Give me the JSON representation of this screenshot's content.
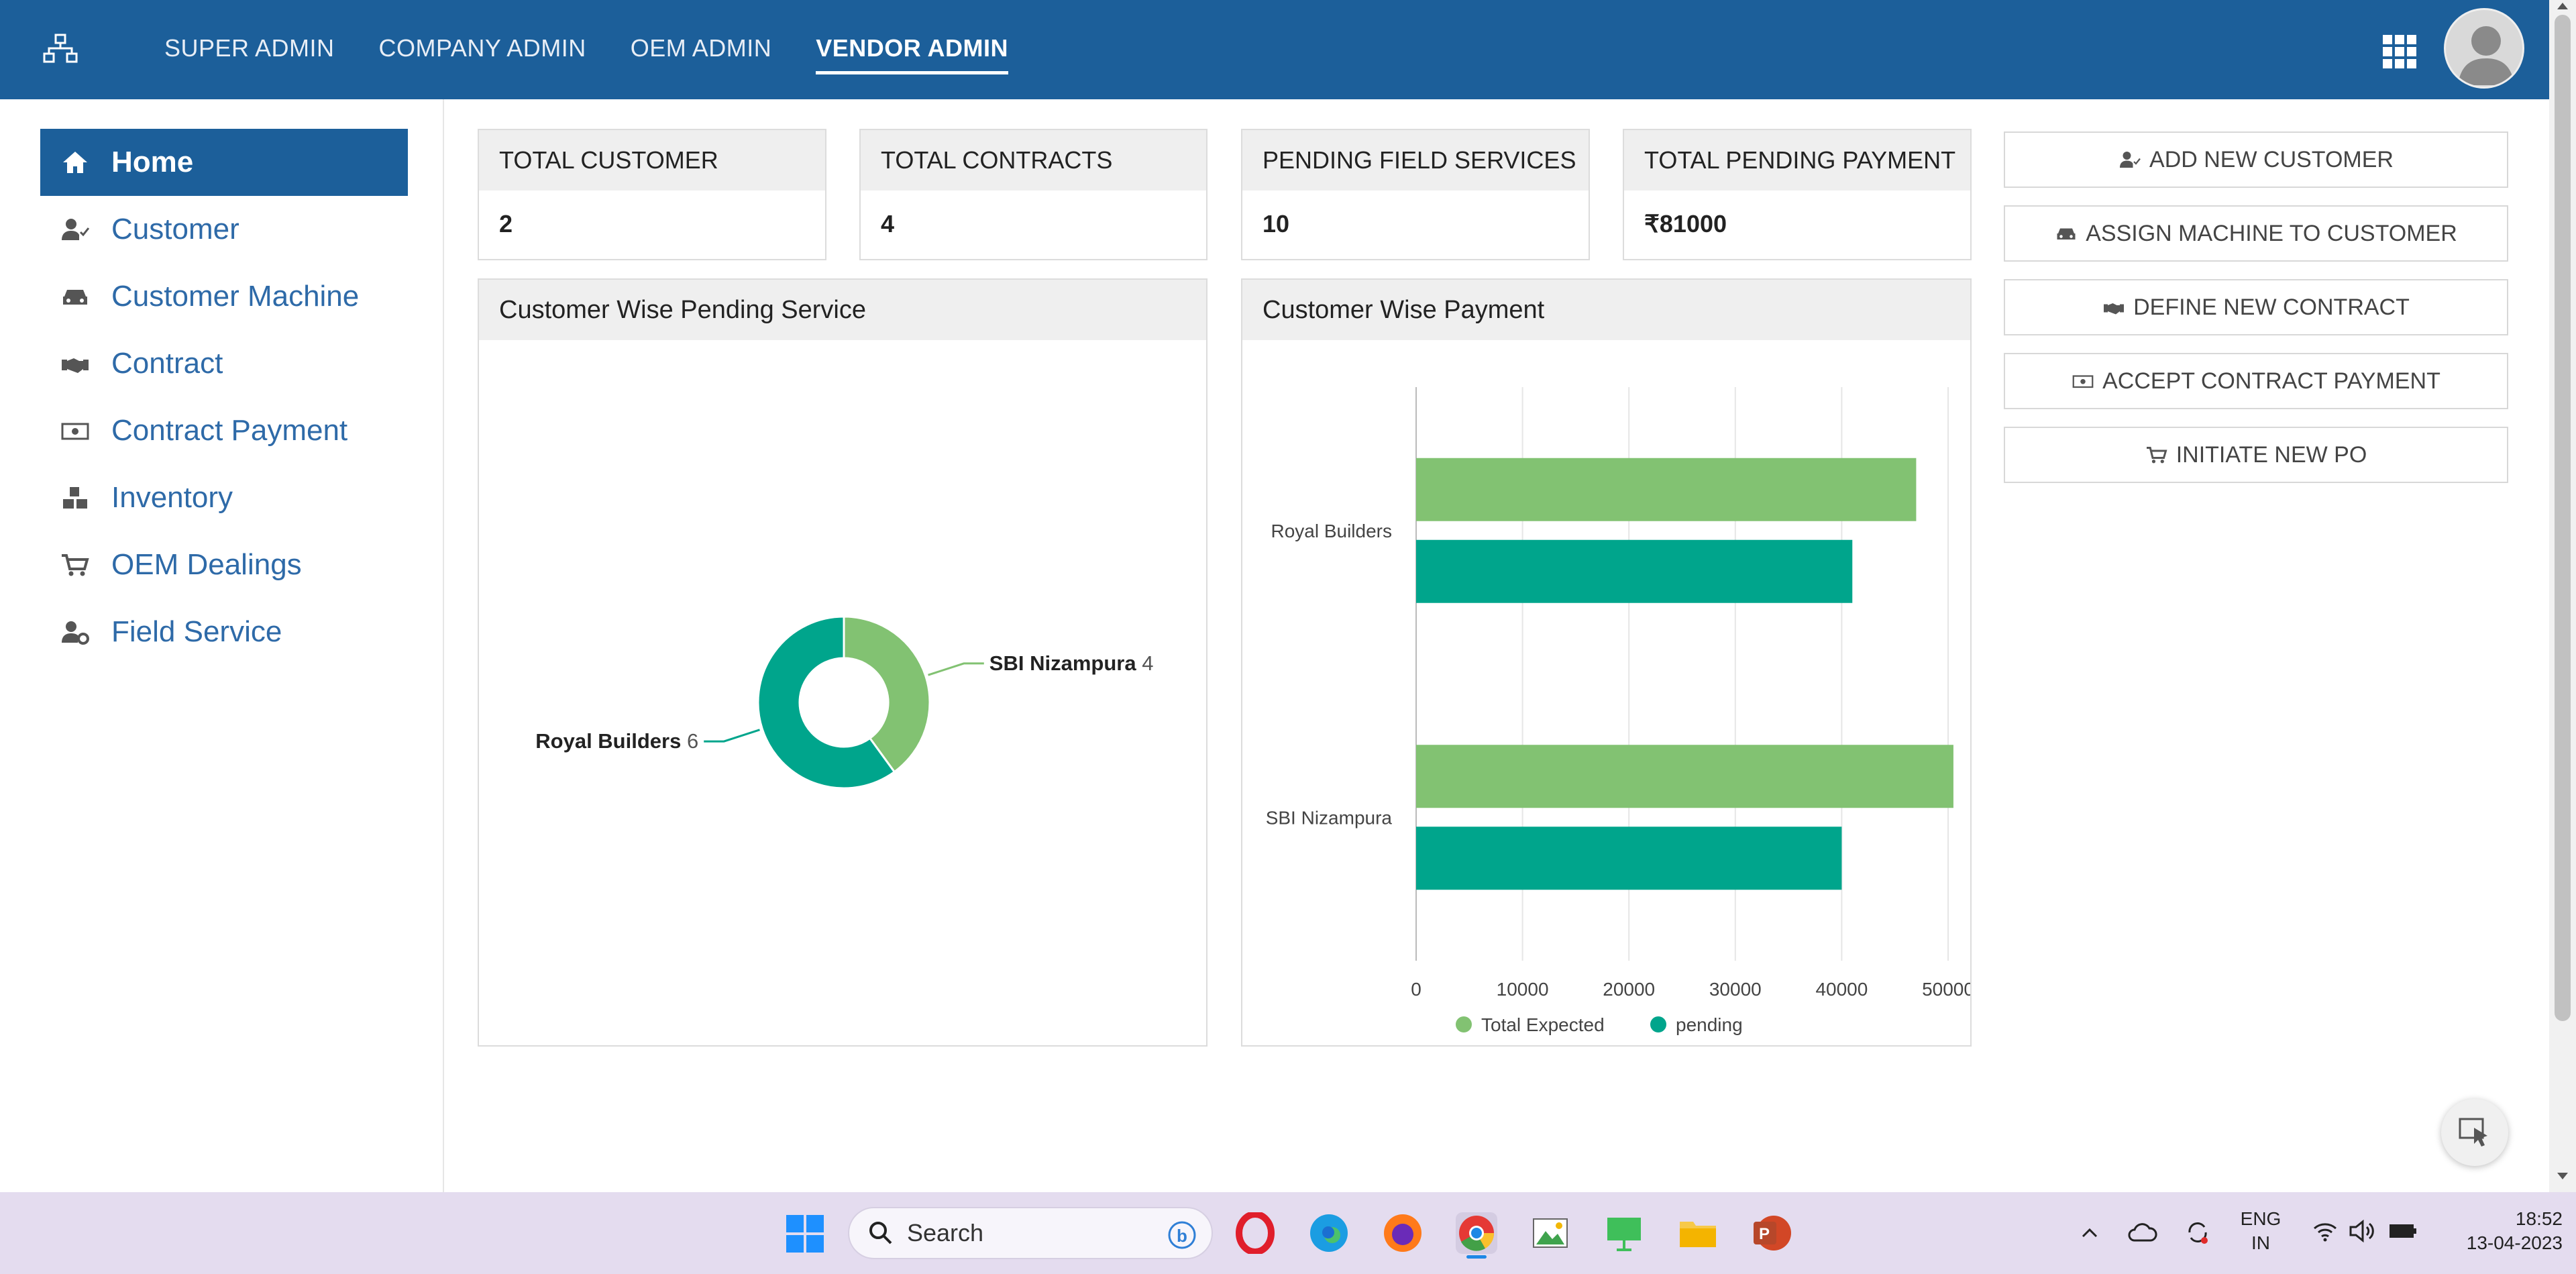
{
  "nav": {
    "items": [
      {
        "label": "SUPER ADMIN"
      },
      {
        "label": "COMPANY ADMIN"
      },
      {
        "label": "OEM ADMIN"
      },
      {
        "label": "VENDOR ADMIN"
      }
    ],
    "active": "VENDOR ADMIN"
  },
  "sidebar": {
    "items": [
      {
        "label": "Home",
        "icon": "home-icon"
      },
      {
        "label": "Customer",
        "icon": "user-check-icon"
      },
      {
        "label": "Customer Machine",
        "icon": "car-icon"
      },
      {
        "label": "Contract",
        "icon": "handshake-icon"
      },
      {
        "label": "Contract Payment",
        "icon": "money-icon"
      },
      {
        "label": "Inventory",
        "icon": "boxes-icon"
      },
      {
        "label": "OEM Dealings",
        "icon": "cart-icon"
      },
      {
        "label": "Field Service",
        "icon": "user-gear-icon"
      }
    ]
  },
  "stats": [
    {
      "title": "TOTAL CUSTOMER",
      "value": "2"
    },
    {
      "title": "TOTAL CONTRACTS",
      "value": "4"
    },
    {
      "title": "PENDING FIELD SERVICES",
      "value": "10"
    },
    {
      "title": "TOTAL PENDING PAYMENT",
      "value": "₹81000"
    }
  ],
  "actions": [
    {
      "label": "ADD NEW CUSTOMER",
      "icon": "user-plus-icon"
    },
    {
      "label": "ASSIGN MACHINE TO CUSTOMER",
      "icon": "car-icon"
    },
    {
      "label": "DEFINE NEW CONTRACT",
      "icon": "handshake-icon"
    },
    {
      "label": "ACCEPT CONTRACT PAYMENT",
      "icon": "money-icon"
    },
    {
      "label": "INITIATE NEW PO",
      "icon": "cart-icon"
    }
  ],
  "chart_data": [
    {
      "type": "pie",
      "title": "Customer Wise Pending Service",
      "donut": true,
      "slices": [
        {
          "label": "SBI Nizampura",
          "value": 4,
          "color": "#82c272"
        },
        {
          "label": "Royal Builders",
          "value": 6,
          "color": "#00a58c"
        }
      ]
    },
    {
      "type": "bar",
      "orientation": "horizontal",
      "title": "Customer Wise Payment",
      "categories": [
        "Royal Builders",
        "SBI Nizampura"
      ],
      "series": [
        {
          "name": "Total Expected",
          "values": [
            47000,
            50500
          ],
          "color": "#82c272"
        },
        {
          "name": "pending",
          "values": [
            41000,
            40000
          ],
          "color": "#00a58c"
        }
      ],
      "xlim": [
        0,
        50000
      ],
      "xticks": [
        "0",
        "10000",
        "20000",
        "30000",
        "40000",
        "50000"
      ],
      "grid": true,
      "legend": "bottom"
    }
  ],
  "taskbar": {
    "search_placeholder": "Search",
    "lang_line1": "ENG",
    "lang_line2": "IN",
    "time": "18:52",
    "date": "13-04-2023"
  }
}
